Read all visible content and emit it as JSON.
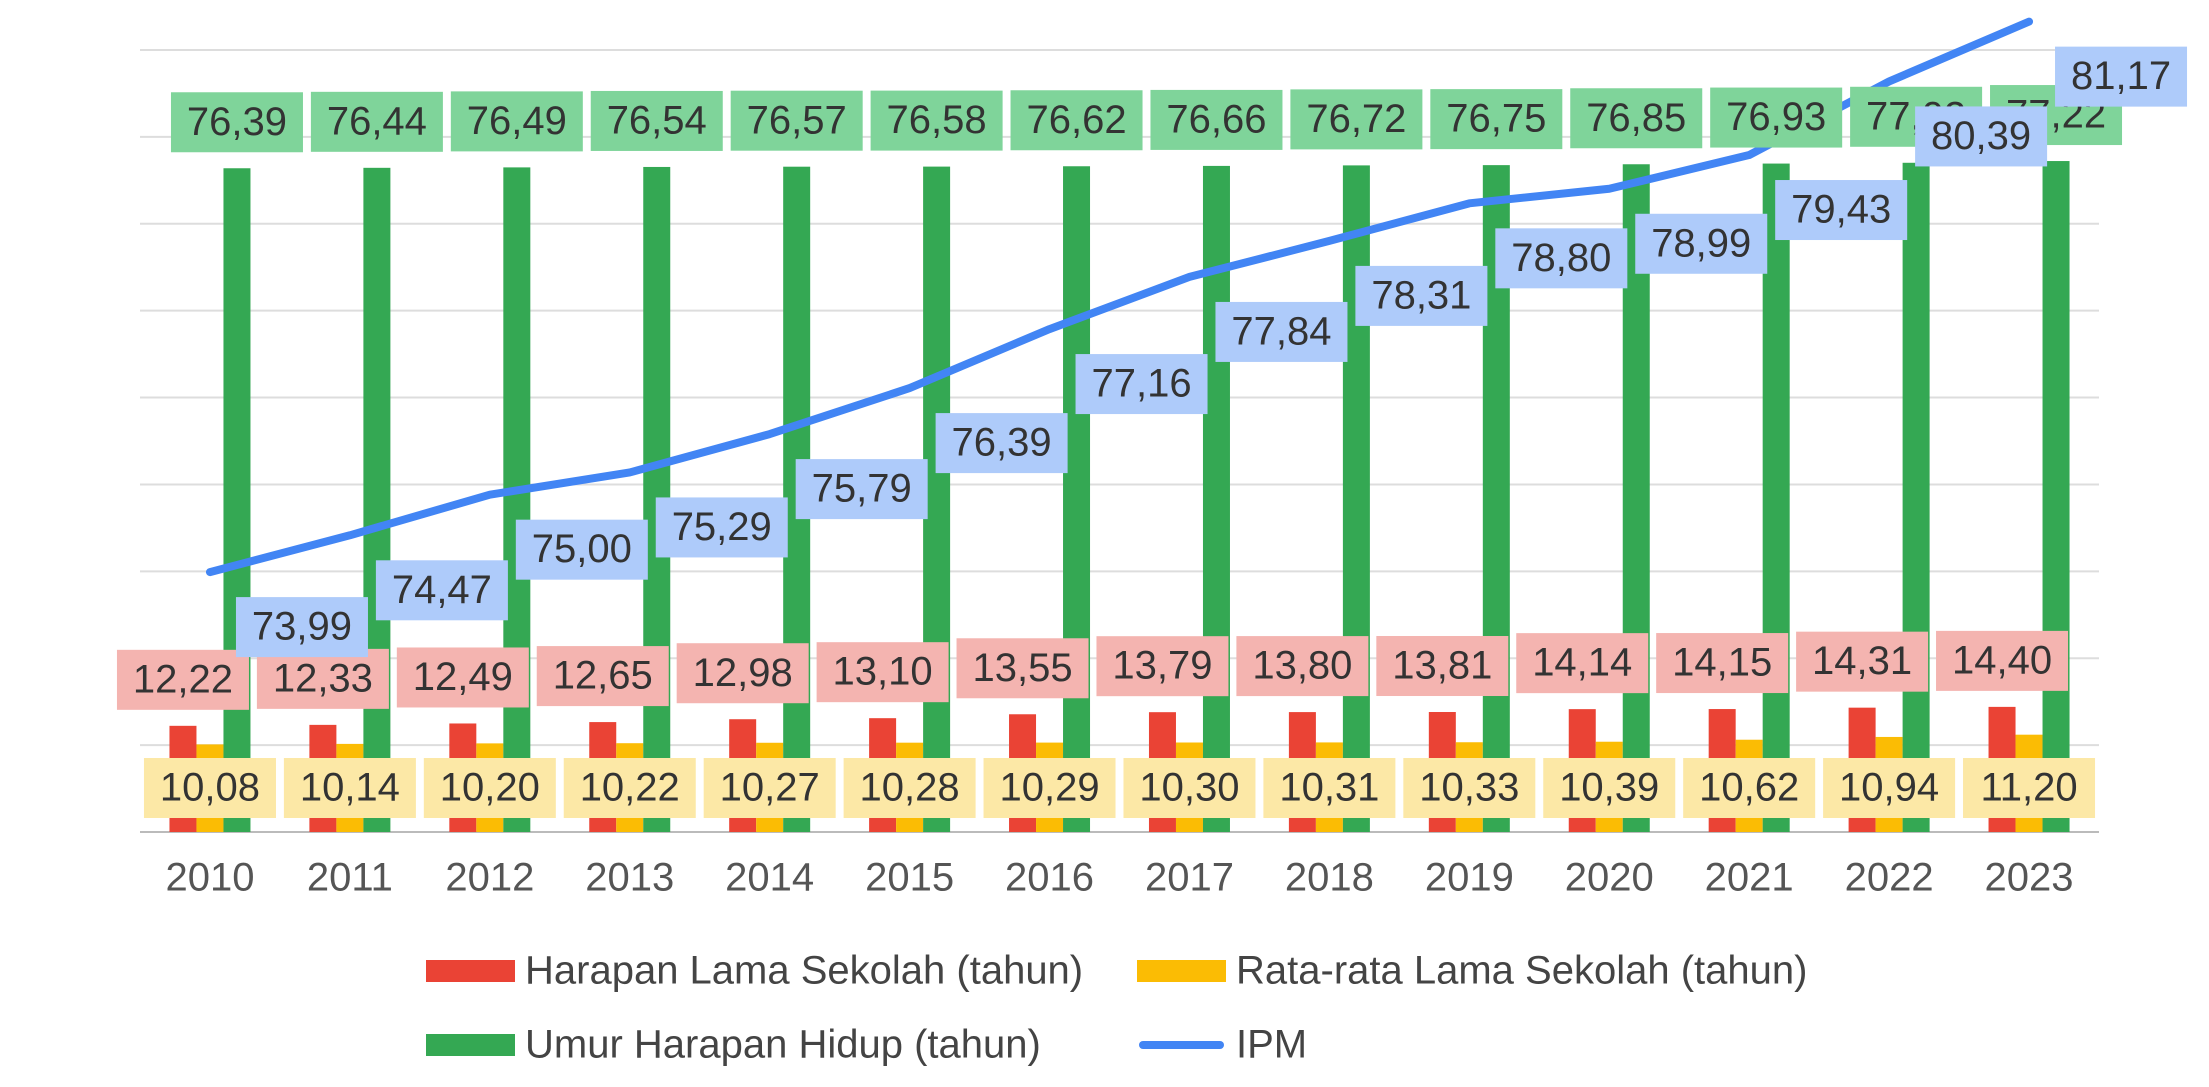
{
  "chart_data": {
    "type": "bar-line",
    "categories": [
      "2010",
      "2011",
      "2012",
      "2013",
      "2014",
      "2015",
      "2016",
      "2017",
      "2018",
      "2019",
      "2020",
      "2021",
      "2022",
      "2023"
    ],
    "series": [
      {
        "name": "Harapan Lama Sekolah (tahun)",
        "type": "bar",
        "color": "#ea4335",
        "label_color": "#f4b4b0",
        "values": [
          12.22,
          12.33,
          12.49,
          12.65,
          12.98,
          13.1,
          13.55,
          13.79,
          13.8,
          13.81,
          14.14,
          14.15,
          14.31,
          14.4
        ],
        "value_labels": [
          "12,22",
          "12,33",
          "12,49",
          "12,65",
          "12,98",
          "13,10",
          "13,55",
          "13,79",
          "13,80",
          "13,81",
          "14,14",
          "14,15",
          "14,31",
          "14,40"
        ]
      },
      {
        "name": "Rata-rata Lama Sekolah (tahun)",
        "type": "bar",
        "color": "#fbbc04",
        "label_color": "#fce8a6",
        "values": [
          10.08,
          10.14,
          10.2,
          10.22,
          10.27,
          10.28,
          10.29,
          10.3,
          10.31,
          10.33,
          10.39,
          10.62,
          10.94,
          11.2
        ],
        "value_labels": [
          "10,08",
          "10,14",
          "10,20",
          "10,22",
          "10,27",
          "10,28",
          "10,29",
          "10,30",
          "10,31",
          "10,33",
          "10,39",
          "10,62",
          "10,94",
          "11,20"
        ]
      },
      {
        "name": "Umur Harapan Hidup (tahun)",
        "type": "bar",
        "color": "#34a853",
        "label_color": "#7fd49a",
        "values": [
          76.39,
          76.44,
          76.49,
          76.54,
          76.57,
          76.58,
          76.62,
          76.66,
          76.72,
          76.75,
          76.85,
          76.93,
          77.02,
          77.22
        ],
        "value_labels": [
          "76,39",
          "76,44",
          "76,49",
          "76,54",
          "76,57",
          "76,58",
          "76,62",
          "76,66",
          "76,72",
          "76,75",
          "76,85",
          "76,93",
          "77,02",
          "77,22"
        ]
      },
      {
        "name": "IPM",
        "type": "line",
        "axis": "y2",
        "color": "#4285f4",
        "label_color": "#aecbfa",
        "values": [
          73.99,
          74.47,
          75.0,
          75.29,
          75.79,
          76.39,
          77.16,
          77.84,
          78.31,
          78.8,
          78.99,
          79.43,
          80.39,
          81.17
        ],
        "value_labels": [
          "73,99",
          "74,47",
          "75,00",
          "75,29",
          "75,79",
          "76,39",
          "77,16",
          "77,84",
          "78,31",
          "78,80",
          "78,99",
          "79,43",
          "80,39",
          "81,17"
        ]
      }
    ],
    "ylim": [
      0,
      90
    ],
    "yticks": [
      0,
      10,
      20,
      30,
      40,
      50,
      60,
      70,
      80,
      90
    ],
    "y2lim": [
      70.6,
      80.8
    ],
    "grid": true,
    "legend": "bottom"
  }
}
